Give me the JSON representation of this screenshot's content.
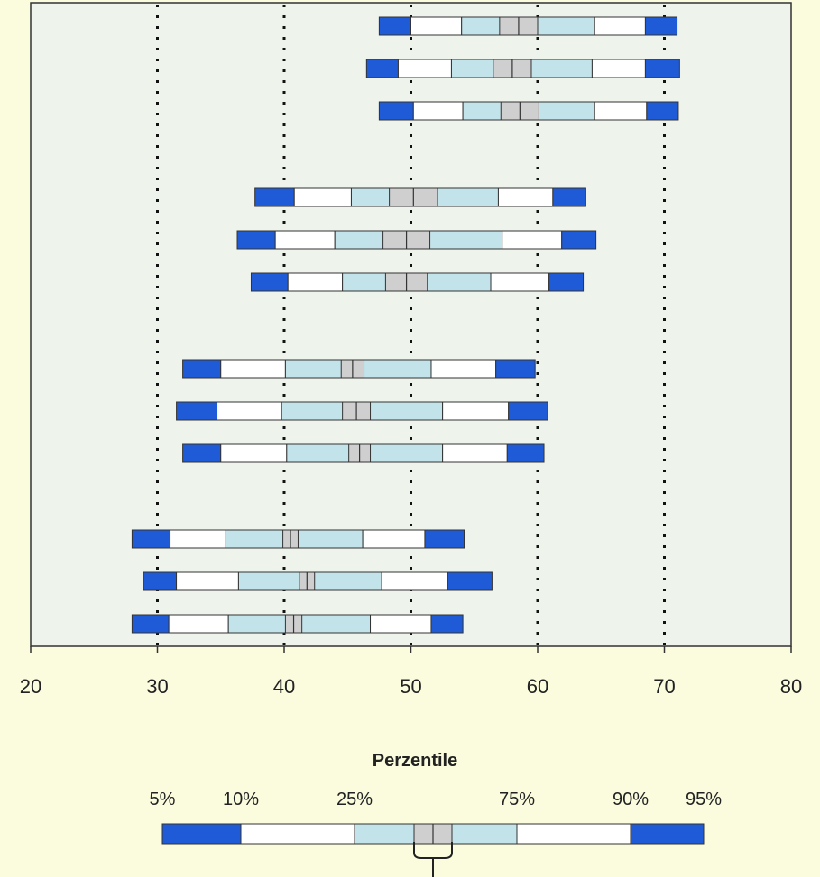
{
  "chart_data": {
    "type": "percentile-bar",
    "title": "",
    "xlabel": "",
    "ylabel": "",
    "xlim": [
      20,
      80
    ],
    "x_ticks": [
      20,
      30,
      40,
      50,
      60,
      70,
      80
    ],
    "gridlines_at": [
      30,
      40,
      50,
      60,
      70
    ],
    "grid": "dotted vertical",
    "colors": {
      "outer": "#1f5bd6",
      "middle": "#ffffff",
      "inner": "#c3e3ea",
      "median": "#cfcfcf",
      "outline": "#333333",
      "plot_background": "#eef3ec",
      "page_background": "#fbfbde"
    },
    "groups": [
      {
        "bars": [
          {
            "p5": 47.5,
            "p10": 50.0,
            "p25": 54.0,
            "median_low": 57.0,
            "median_high": 60.0,
            "p75": 64.5,
            "p90": 68.5,
            "p95": 71.0
          },
          {
            "p5": 46.5,
            "p10": 49.0,
            "p25": 53.2,
            "median_low": 56.5,
            "median_high": 59.5,
            "p75": 64.3,
            "p90": 68.5,
            "p95": 71.2
          },
          {
            "p5": 47.5,
            "p10": 50.2,
            "p25": 54.1,
            "median_low": 57.1,
            "median_high": 60.1,
            "p75": 64.5,
            "p90": 68.6,
            "p95": 71.1
          }
        ]
      },
      {
        "bars": [
          {
            "p5": 37.7,
            "p10": 40.8,
            "p25": 45.3,
            "median_low": 48.3,
            "median_high": 52.1,
            "p75": 56.9,
            "p90": 61.2,
            "p95": 63.8
          },
          {
            "p5": 36.3,
            "p10": 39.3,
            "p25": 44.0,
            "median_low": 47.8,
            "median_high": 51.5,
            "p75": 57.2,
            "p90": 61.9,
            "p95": 64.6
          },
          {
            "p5": 37.4,
            "p10": 40.3,
            "p25": 44.6,
            "median_low": 48.0,
            "median_high": 51.3,
            "p75": 56.3,
            "p90": 60.9,
            "p95": 63.6
          }
        ]
      },
      {
        "bars": [
          {
            "p5": 32.0,
            "p10": 35.0,
            "p25": 40.1,
            "median_low": 44.5,
            "median_high": 46.3,
            "p75": 51.6,
            "p90": 56.7,
            "p95": 59.8
          },
          {
            "p5": 31.5,
            "p10": 34.7,
            "p25": 39.8,
            "median_low": 44.6,
            "median_high": 46.8,
            "p75": 52.5,
            "p90": 57.7,
            "p95": 60.8
          },
          {
            "p5": 32.0,
            "p10": 35.0,
            "p25": 40.2,
            "median_low": 45.1,
            "median_high": 46.8,
            "p75": 52.5,
            "p90": 57.6,
            "p95": 60.5
          }
        ]
      },
      {
        "bars": [
          {
            "p5": 28.0,
            "p10": 31.0,
            "p25": 35.4,
            "median_low": 39.9,
            "median_high": 41.1,
            "p75": 46.2,
            "p90": 51.1,
            "p95": 54.2
          },
          {
            "p5": 28.9,
            "p10": 31.5,
            "p25": 36.4,
            "median_low": 41.2,
            "median_high": 42.4,
            "p75": 47.7,
            "p90": 52.9,
            "p95": 56.4
          },
          {
            "p5": 28.0,
            "p10": 30.9,
            "p25": 35.6,
            "median_low": 40.1,
            "median_high": 41.4,
            "p75": 46.8,
            "p90": 51.6,
            "p95": 54.1
          }
        ]
      }
    ],
    "legend": {
      "title": "Perzentile",
      "placement": "bottom-center",
      "labels": [
        "5%",
        "10%",
        "25%",
        "75%",
        "90%",
        "95%"
      ],
      "example": {
        "p5": 0,
        "p10": 0.145,
        "p25": 0.355,
        "median_low": 0.465,
        "median_high": 0.535,
        "p75": 0.655,
        "p90": 0.865,
        "p95": 1
      }
    }
  }
}
